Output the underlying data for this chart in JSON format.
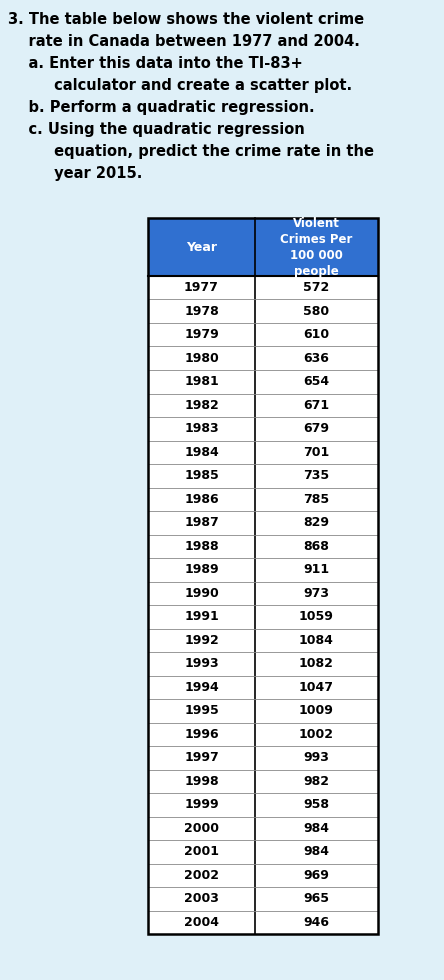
{
  "background_color": "#dff0f8",
  "text_lines": [
    "3. The table below shows the violent crime",
    "    rate in Canada between 1977 and 2004.",
    "    a. Enter this data into the TI-83+",
    "         calculator and create a scatter plot.",
    "    b. Perform a quadratic regression.",
    "    c. Using the quadratic regression",
    "         equation, predict the crime rate in the",
    "         year 2015."
  ],
  "col1_header": "Year",
  "col2_header": "Violent\nCrimes Per\n100 000\npeople",
  "header_bg": "#3070d0",
  "header_text_color": "#ffffff",
  "table_border_color": "#000000",
  "row_line_color": "#888888",
  "data_text_color": "#000000",
  "years": [
    1977,
    1978,
    1979,
    1980,
    1981,
    1982,
    1983,
    1984,
    1985,
    1986,
    1987,
    1988,
    1989,
    1990,
    1991,
    1992,
    1993,
    1994,
    1995,
    1996,
    1997,
    1998,
    1999,
    2000,
    2001,
    2002,
    2003,
    2004
  ],
  "crimes": [
    572,
    580,
    610,
    636,
    654,
    671,
    679,
    701,
    735,
    785,
    829,
    868,
    911,
    973,
    1059,
    1084,
    1082,
    1047,
    1009,
    1002,
    993,
    982,
    958,
    984,
    984,
    969,
    965,
    946
  ]
}
